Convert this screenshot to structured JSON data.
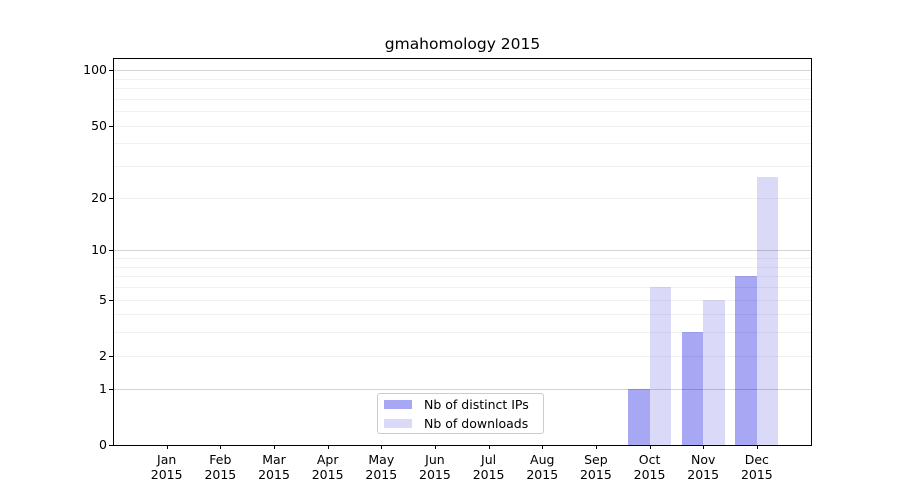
{
  "chart_data": {
    "type": "bar",
    "title": "gmahomology 2015",
    "categories": [
      "Jan",
      "Feb",
      "Mar",
      "Apr",
      "May",
      "Jun",
      "Jul",
      "Aug",
      "Sep",
      "Oct",
      "Nov",
      "Dec"
    ],
    "year_label": "2015",
    "series": [
      {
        "name": "Nb of distinct IPs",
        "color": "#a7a7f4",
        "values": [
          0,
          0,
          0,
          0,
          0,
          0,
          0,
          0,
          0,
          1,
          3,
          7
        ]
      },
      {
        "name": "Nb of downloads",
        "color": "#dadaf8",
        "values": [
          0,
          0,
          0,
          0,
          0,
          0,
          0,
          0,
          0,
          6,
          5,
          26
        ]
      }
    ],
    "yticks": [
      0,
      1,
      2,
      5,
      10,
      20,
      50,
      100
    ],
    "ylim": [
      0,
      115
    ],
    "scale": "log10(value+1)",
    "grid": {
      "major": [
        1,
        10,
        100
      ],
      "minor": [
        2,
        3,
        4,
        5,
        6,
        7,
        8,
        9,
        20,
        30,
        40,
        50,
        60,
        70,
        80,
        90
      ]
    },
    "legend_position": "bottom-center",
    "xlabel": "",
    "ylabel": ""
  }
}
